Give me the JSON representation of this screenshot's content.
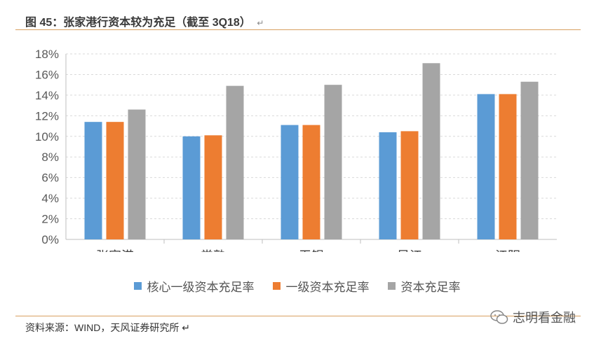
{
  "header": {
    "title": "图 45：张家港行资本较为充足（截至 3Q18）",
    "mark": "↵"
  },
  "chart_data": {
    "type": "bar",
    "categories": [
      "张家港",
      "常熟",
      "无锡",
      "吴江",
      "江阴"
    ],
    "series": [
      {
        "name": "核心一级资本充足率",
        "color": "#5b9bd5",
        "values": [
          11.4,
          10.0,
          11.1,
          10.4,
          14.1
        ]
      },
      {
        "name": "一级资本充足率",
        "color": "#ed7d31",
        "values": [
          11.4,
          10.1,
          11.1,
          10.5,
          14.1
        ]
      },
      {
        "name": "资本充足率",
        "color": "#a5a5a5",
        "values": [
          12.6,
          14.9,
          15.0,
          17.1,
          15.3
        ]
      }
    ],
    "ylim": [
      0,
      18
    ],
    "yticks": [
      "0%",
      "2%",
      "4%",
      "6%",
      "8%",
      "10%",
      "12%",
      "14%",
      "16%",
      "18%"
    ],
    "grid": true,
    "legend_position": "bottom"
  },
  "footer": {
    "source": "资料来源：WIND，天风证券研究所 ↵",
    "watermark": "志明看金融"
  }
}
